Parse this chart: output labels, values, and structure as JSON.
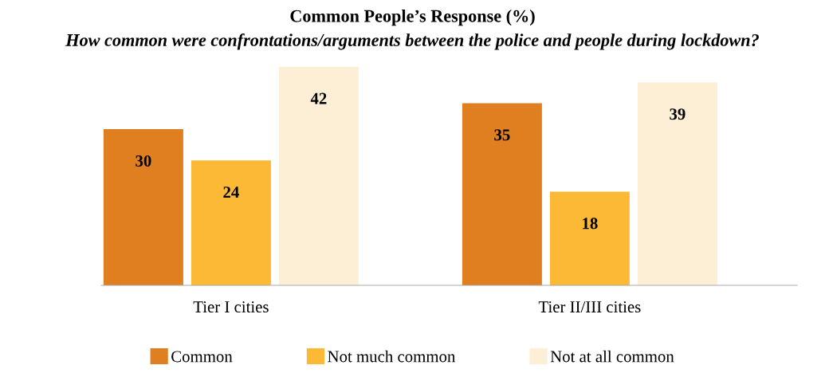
{
  "chart_data": {
    "type": "bar",
    "title": "Common People’s Response (%)",
    "subtitle": "How common were confrontations/arguments between the police and people during lockdown?",
    "categories": [
      "Tier I cities",
      "Tier II/III cities"
    ],
    "series": [
      {
        "name": "Common",
        "color": "#e07f20",
        "values": [
          30,
          35
        ]
      },
      {
        "name": "Not much common",
        "color": "#fbb935",
        "values": [
          24,
          18
        ]
      },
      {
        "name": "Not at all common",
        "color": "#fdefd6",
        "values": [
          42,
          39
        ]
      }
    ],
    "data_labels": true,
    "legend": "bottom",
    "grid": false
  }
}
